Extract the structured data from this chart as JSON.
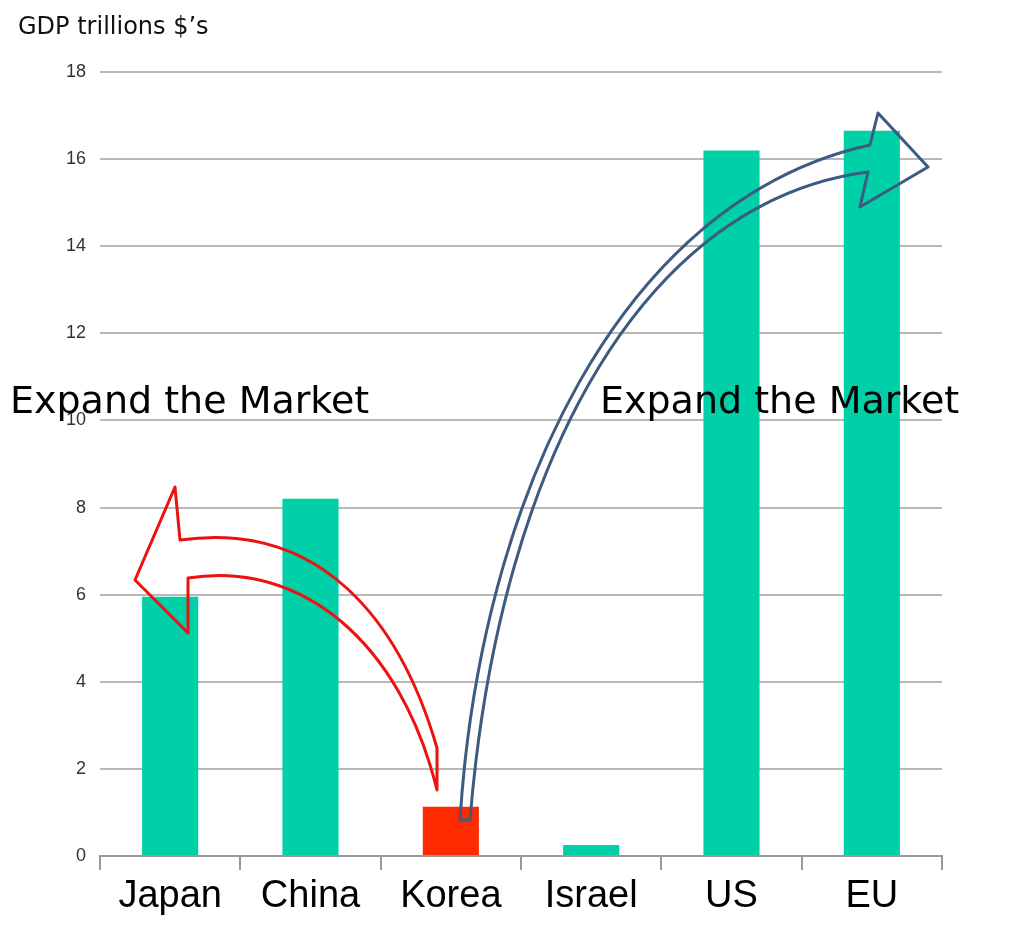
{
  "chart_data": {
    "type": "bar",
    "ylabel": "GDP trillions $’s",
    "categories": [
      "Japan",
      "China",
      "Korea",
      "Israel",
      "US",
      "EU"
    ],
    "values": [
      5.95,
      8.2,
      1.13,
      0.25,
      16.2,
      16.65
    ],
    "colors": [
      "#00d0a8",
      "#00d0a8",
      "#ff2a00",
      "#00d0a8",
      "#00d0a8",
      "#00d0a8"
    ],
    "ylim": [
      0,
      18
    ],
    "yticks": [
      0,
      2,
      4,
      6,
      8,
      10,
      12,
      14,
      16,
      18
    ],
    "grid": "y",
    "annotations": [
      "Expand the Market",
      "Expand the Market"
    ]
  }
}
